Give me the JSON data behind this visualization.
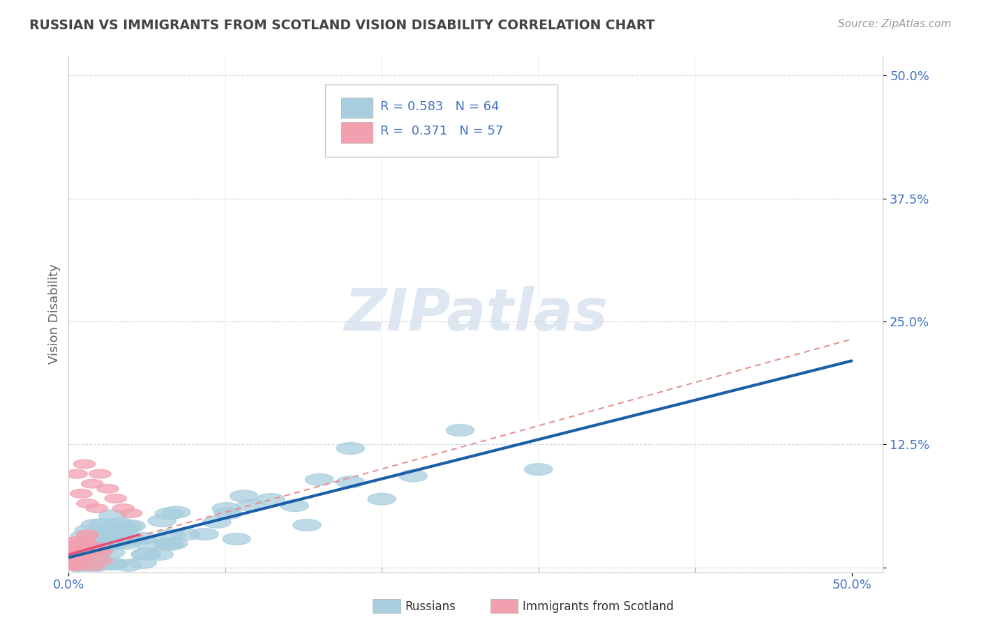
{
  "title": "RUSSIAN VS IMMIGRANTS FROM SCOTLAND VISION DISABILITY CORRELATION CHART",
  "source": "Source: ZipAtlas.com",
  "ylabel": "Vision Disability",
  "xlim": [
    0.0,
    0.52
  ],
  "ylim": [
    -0.005,
    0.52
  ],
  "ytick_vals": [
    0.0,
    0.125,
    0.25,
    0.375,
    0.5
  ],
  "ytick_labels": [
    "",
    "12.5%",
    "25.0%",
    "37.5%",
    "50.0%"
  ],
  "legend_text1": "R = 0.583   N = 64",
  "legend_text2": "R =  0.371   N = 57",
  "blue_scatter_color": "#A8CEDE",
  "pink_scatter_color": "#F2A0B0",
  "blue_line_color": "#1A5FA8",
  "pink_line_color": "#E0507A",
  "pink_dash_color": "#E89090",
  "grid_color": "#C8D8E8",
  "background_color": "#FFFFFF",
  "watermark": "ZIPatlas",
  "title_color": "#444444",
  "axis_label_color": "#4472C4",
  "ylabel_color": "#666666"
}
